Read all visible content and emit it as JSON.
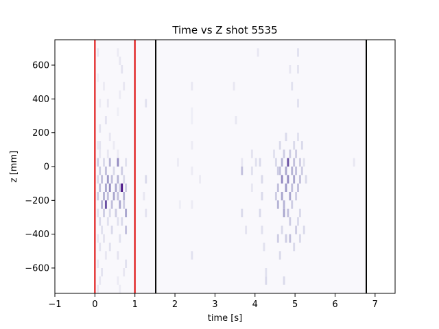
{
  "chart_data": {
    "type": "heatmap",
    "title": "Time vs Z shot 5535",
    "xlabel": "time [s]",
    "ylabel": "z [mm]",
    "xlim": [
      -1,
      7.5
    ],
    "ylim": [
      -750,
      750
    ],
    "xticks": [
      -1,
      0,
      1,
      2,
      3,
      4,
      5,
      6,
      7
    ],
    "xtick_labels": [
      "−1",
      "0",
      "1",
      "2",
      "3",
      "4",
      "5",
      "6",
      "7"
    ],
    "yticks": [
      -600,
      -400,
      -200,
      0,
      200,
      400,
      600
    ],
    "ytick_labels": [
      "−600",
      "−400",
      "−200",
      "0",
      "200",
      "400",
      "600"
    ],
    "colormap": "Purples",
    "grid": false,
    "bin_width_s": 0.05,
    "bin_height_mm": 50,
    "background_region": {
      "x_from": 0,
      "x_to": 6.75,
      "intensity": 0.02
    },
    "vertical_lines": [
      {
        "x": 0,
        "color": "#dd0000"
      },
      {
        "x": 1,
        "color": "#dd0000"
      },
      {
        "x": 1.52,
        "color": "#000000"
      },
      {
        "x": 6.78,
        "color": "#000000"
      }
    ],
    "cells": [
      [
        0.05,
        650,
        0.15
      ],
      [
        0.55,
        650,
        0.12
      ],
      [
        0.6,
        600,
        0.15
      ],
      [
        0.65,
        550,
        0.18
      ],
      [
        0.05,
        500,
        0.1
      ],
      [
        0.2,
        450,
        0.12
      ],
      [
        0.7,
        450,
        0.15
      ],
      [
        0.6,
        400,
        0.12
      ],
      [
        0.1,
        350,
        0.12
      ],
      [
        0.3,
        350,
        0.15
      ],
      [
        0.55,
        300,
        0.1
      ],
      [
        0.25,
        250,
        0.18
      ],
      [
        0.1,
        200,
        0.18
      ],
      [
        0.35,
        150,
        0.15
      ],
      [
        0.05,
        100,
        0.15
      ],
      [
        0.1,
        100,
        0.18
      ],
      [
        0.45,
        100,
        0.12
      ],
      [
        0.1,
        50,
        0.15
      ],
      [
        0.3,
        50,
        0.15
      ],
      [
        0.55,
        50,
        0.12
      ],
      [
        0.05,
        0,
        0.3
      ],
      [
        0.2,
        0,
        0.25
      ],
      [
        0.35,
        0,
        0.4
      ],
      [
        0.55,
        0,
        0.55
      ],
      [
        0.75,
        0,
        0.2
      ],
      [
        0.1,
        -50,
        0.3
      ],
      [
        0.25,
        -50,
        0.35
      ],
      [
        0.45,
        -50,
        0.25
      ],
      [
        0.65,
        -50,
        0.3
      ],
      [
        0.05,
        -100,
        0.25
      ],
      [
        0.15,
        -100,
        0.35
      ],
      [
        0.3,
        -100,
        0.5
      ],
      [
        0.4,
        -100,
        0.35
      ],
      [
        0.55,
        -100,
        0.4
      ],
      [
        0.7,
        -100,
        0.25
      ],
      [
        0.1,
        -150,
        0.35
      ],
      [
        0.25,
        -150,
        0.45
      ],
      [
        0.35,
        -150,
        0.55
      ],
      [
        0.5,
        -150,
        0.45
      ],
      [
        0.6,
        -150,
        0.3
      ],
      [
        0.65,
        -150,
        0.95
      ],
      [
        0.75,
        -150,
        0.3
      ],
      [
        0.05,
        -200,
        0.3
      ],
      [
        0.2,
        -200,
        0.4
      ],
      [
        0.3,
        -200,
        0.35
      ],
      [
        0.45,
        -200,
        0.45
      ],
      [
        0.55,
        -200,
        0.35
      ],
      [
        0.7,
        -200,
        0.4
      ],
      [
        0.15,
        -250,
        0.4
      ],
      [
        0.25,
        -250,
        0.75
      ],
      [
        0.4,
        -250,
        0.35
      ],
      [
        0.6,
        -250,
        0.45
      ],
      [
        0.7,
        -250,
        0.3
      ],
      [
        0.05,
        -300,
        0.2
      ],
      [
        0.2,
        -300,
        0.3
      ],
      [
        0.35,
        -300,
        0.25
      ],
      [
        0.5,
        -300,
        0.3
      ],
      [
        0.75,
        -300,
        0.45
      ],
      [
        0.1,
        -350,
        0.25
      ],
      [
        0.3,
        -350,
        0.2
      ],
      [
        0.55,
        -350,
        0.2
      ],
      [
        0.65,
        -350,
        0.25
      ],
      [
        0.15,
        -400,
        0.2
      ],
      [
        0.4,
        -400,
        0.25
      ],
      [
        0.75,
        -400,
        0.35
      ],
      [
        0.05,
        -450,
        0.15
      ],
      [
        0.2,
        -450,
        0.18
      ],
      [
        0.6,
        -450,
        0.2
      ],
      [
        0.1,
        -500,
        0.18
      ],
      [
        0.35,
        -500,
        0.2
      ],
      [
        0.25,
        -550,
        0.15
      ],
      [
        0.55,
        -550,
        0.18
      ],
      [
        0.05,
        -600,
        0.15
      ],
      [
        0.75,
        -600,
        0.2
      ],
      [
        0.15,
        -650,
        0.18
      ],
      [
        0.7,
        -650,
        0.15
      ],
      [
        0.1,
        -700,
        0.15
      ],
      [
        0.55,
        -700,
        0.12
      ],
      [
        0.05,
        -750,
        0.15
      ],
      [
        0.6,
        -750,
        0.12
      ],
      [
        1.25,
        350,
        0.2
      ],
      [
        1.25,
        -100,
        0.25
      ],
      [
        1.2,
        -200,
        0.15
      ],
      [
        1.25,
        -300,
        0.18
      ],
      [
        2.4,
        450,
        0.15
      ],
      [
        2.4,
        300,
        0.1
      ],
      [
        2.4,
        250,
        0.1
      ],
      [
        2.4,
        100,
        0.12
      ],
      [
        2.4,
        -50,
        0.12
      ],
      [
        2.4,
        -250,
        0.12
      ],
      [
        2.4,
        -550,
        0.2
      ],
      [
        2.05,
        0,
        0.12
      ],
      [
        2.1,
        -250,
        0.1
      ],
      [
        2.6,
        -100,
        0.12
      ],
      [
        3.45,
        450,
        0.15
      ],
      [
        3.5,
        250,
        0.15
      ],
      [
        3.65,
        0,
        0.15
      ],
      [
        3.65,
        -50,
        0.35
      ],
      [
        3.65,
        -300,
        0.25
      ],
      [
        3.75,
        -400,
        0.18
      ],
      [
        3.9,
        50,
        0.18
      ],
      [
        3.9,
        -50,
        0.2
      ],
      [
        3.9,
        -150,
        0.15
      ],
      [
        4.0,
        0,
        0.2
      ],
      [
        4.05,
        650,
        0.15
      ],
      [
        4.1,
        0,
        0.25
      ],
      [
        4.1,
        -300,
        0.25
      ],
      [
        4.15,
        -100,
        0.25
      ],
      [
        4.15,
        -200,
        0.25
      ],
      [
        4.15,
        -400,
        0.2
      ],
      [
        4.2,
        -500,
        0.2
      ],
      [
        4.25,
        -650,
        0.2
      ],
      [
        4.25,
        -700,
        0.25
      ],
      [
        4.45,
        50,
        0.2
      ],
      [
        4.5,
        0,
        0.25
      ],
      [
        4.5,
        -200,
        0.3
      ],
      [
        4.55,
        -50,
        0.3
      ],
      [
        4.55,
        -150,
        0.35
      ],
      [
        4.55,
        -250,
        0.4
      ],
      [
        4.55,
        -450,
        0.3
      ],
      [
        4.6,
        100,
        0.25
      ],
      [
        4.6,
        -50,
        0.35
      ],
      [
        4.6,
        -550,
        0.25
      ],
      [
        4.65,
        0,
        0.4
      ],
      [
        4.65,
        -100,
        0.55
      ],
      [
        4.65,
        -200,
        0.45
      ],
      [
        4.65,
        -400,
        0.25
      ],
      [
        4.7,
        50,
        0.3
      ],
      [
        4.7,
        -250,
        0.4
      ],
      [
        4.7,
        -300,
        0.45
      ],
      [
        4.7,
        -700,
        0.25
      ],
      [
        4.75,
        150,
        0.25
      ],
      [
        4.75,
        -50,
        0.45
      ],
      [
        4.75,
        -150,
        0.5
      ],
      [
        4.75,
        -450,
        0.3
      ],
      [
        4.8,
        0,
        0.75
      ],
      [
        4.8,
        -100,
        0.55
      ],
      [
        4.8,
        -300,
        0.35
      ],
      [
        4.85,
        550,
        0.15
      ],
      [
        4.85,
        50,
        0.3
      ],
      [
        4.85,
        -200,
        0.45
      ],
      [
        4.85,
        -350,
        0.3
      ],
      [
        4.85,
        -450,
        0.35
      ],
      [
        4.9,
        -50,
        0.4
      ],
      [
        4.9,
        -150,
        0.35
      ],
      [
        4.9,
        -250,
        0.3
      ],
      [
        4.9,
        450,
        0.2
      ],
      [
        4.95,
        100,
        0.25
      ],
      [
        4.95,
        0,
        0.35
      ],
      [
        4.95,
        -100,
        0.45
      ],
      [
        4.95,
        -500,
        0.25
      ],
      [
        5.0,
        50,
        0.3
      ],
      [
        5.0,
        -50,
        0.35
      ],
      [
        5.0,
        -200,
        0.3
      ],
      [
        5.0,
        -400,
        0.3
      ],
      [
        5.05,
        650,
        0.2
      ],
      [
        5.05,
        550,
        0.18
      ],
      [
        5.05,
        350,
        0.2
      ],
      [
        5.05,
        150,
        0.2
      ],
      [
        5.05,
        -150,
        0.35
      ],
      [
        5.05,
        -350,
        0.25
      ],
      [
        5.1,
        0,
        0.3
      ],
      [
        5.1,
        -100,
        0.35
      ],
      [
        5.1,
        -300,
        0.25
      ],
      [
        5.1,
        -450,
        0.25
      ],
      [
        5.15,
        100,
        0.25
      ],
      [
        5.15,
        -50,
        0.3
      ],
      [
        5.2,
        0,
        0.2
      ],
      [
        5.2,
        -400,
        0.25
      ],
      [
        5.25,
        -100,
        0.25
      ],
      [
        6.45,
        0,
        0.15
      ]
    ]
  }
}
